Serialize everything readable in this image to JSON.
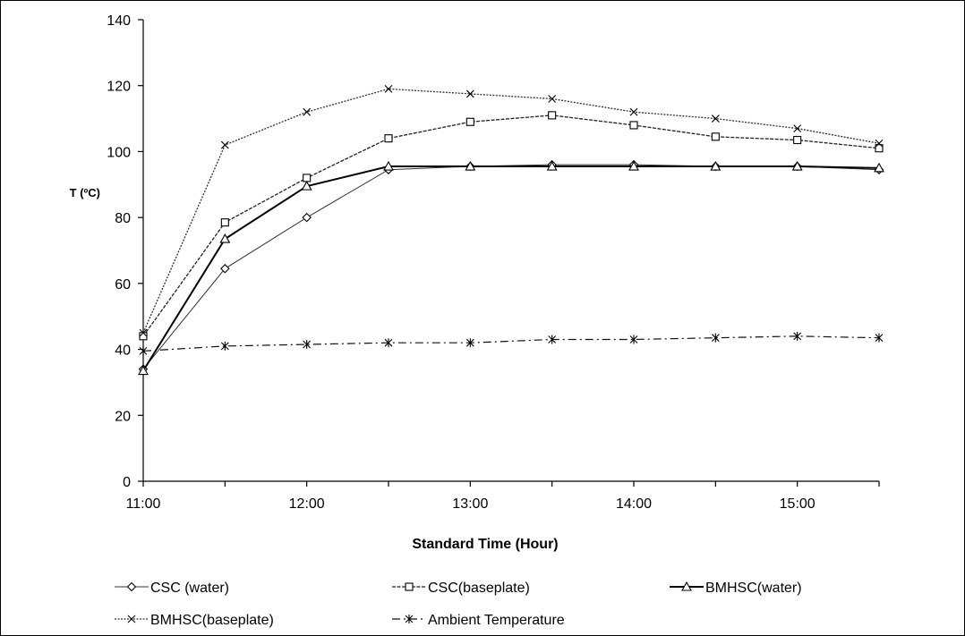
{
  "chart_data": {
    "type": "line",
    "xlabel": "Standard Time (Hour)",
    "ylabel": "T (ºC)",
    "ylim": [
      0,
      140
    ],
    "yticks": [
      0,
      20,
      40,
      60,
      80,
      100,
      120,
      140
    ],
    "x": [
      "11:00",
      "11:30",
      "12:00",
      "12:30",
      "13:00",
      "13:30",
      "14:00",
      "14:30",
      "15:00",
      "15:30"
    ],
    "xtick_labels": [
      "11:00",
      "12:00",
      "13:00",
      "14:00",
      "15:00"
    ],
    "grid": false,
    "legend_position": "bottom",
    "series": [
      {
        "name": "CSC (water)",
        "marker": "diamond",
        "values": [
          34,
          64.5,
          80,
          94.5,
          95.5,
          96,
          96,
          95.5,
          95.5,
          94.5
        ]
      },
      {
        "name": "CSC(baseplate)",
        "marker": "square",
        "values": [
          44,
          78.5,
          92,
          104,
          109,
          111,
          108,
          104.5,
          103.5,
          101
        ]
      },
      {
        "name": "BMHSC(water)",
        "marker": "triangle",
        "values": [
          33.5,
          73.5,
          89.5,
          95.5,
          95.5,
          95.5,
          95.5,
          95.5,
          95.5,
          95
        ]
      },
      {
        "name": "BMHSC(baseplate)",
        "marker": "x",
        "values": [
          45,
          102,
          112,
          119,
          117.5,
          116,
          112,
          110,
          107,
          102.5
        ]
      },
      {
        "name": "Ambient Temperature",
        "marker": "star",
        "values": [
          39.5,
          41,
          41.5,
          42,
          42,
          43,
          43,
          43.5,
          44,
          43.5
        ]
      }
    ]
  }
}
